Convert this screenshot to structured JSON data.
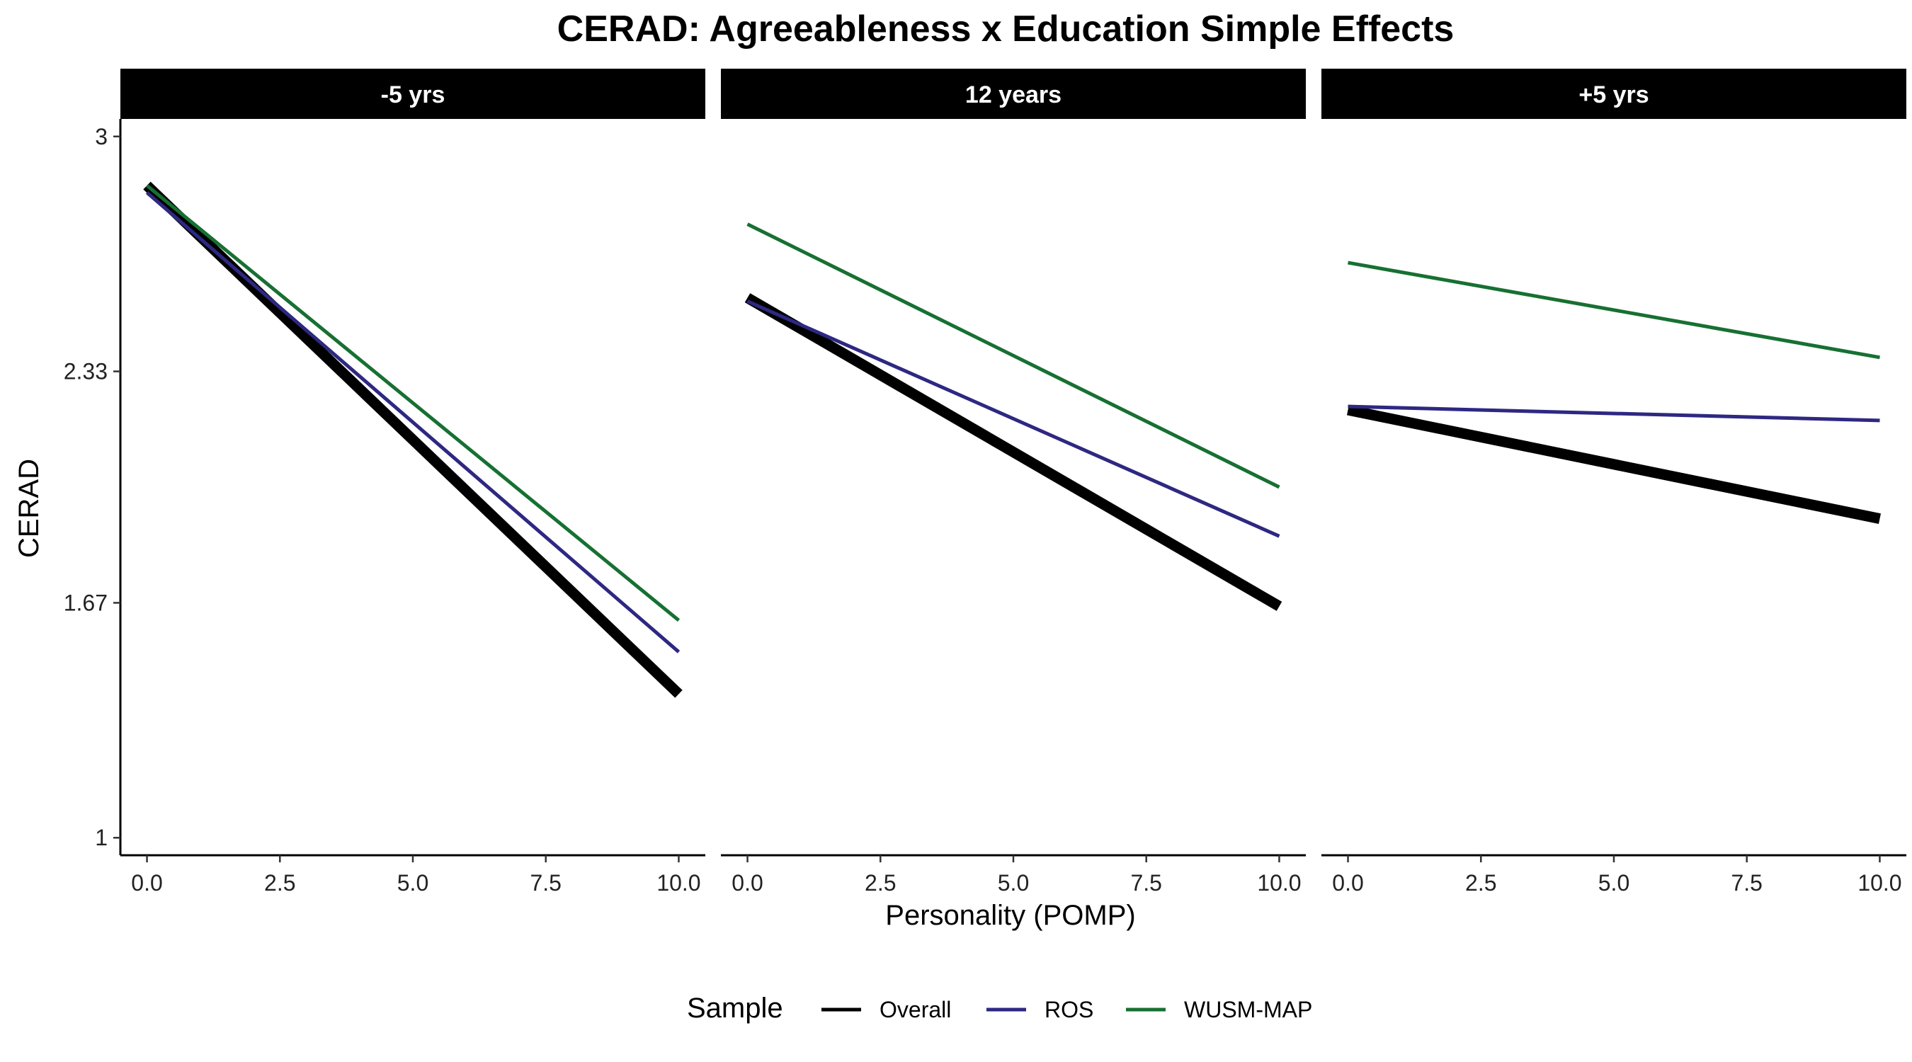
{
  "chart_data": {
    "type": "line",
    "title": "CERAD: Agreeableness x Education Simple Effects",
    "xlabel": "Personality (POMP)",
    "ylabel": "CERAD",
    "xlim": [
      -0.5,
      10.5
    ],
    "ylim": [
      0.95,
      3.05
    ],
    "x_ticks": [
      0,
      2.5,
      5,
      7.5,
      10
    ],
    "x_tick_labels": [
      "0.0",
      "2.5",
      "5.0",
      "7.5",
      "10.0"
    ],
    "y_ticks": [
      1,
      1.67,
      2.33,
      3
    ],
    "y_tick_labels": [
      "1",
      "1.67",
      "2.33",
      "3"
    ],
    "grid": false,
    "legend": {
      "title": "Sample",
      "position": "bottom",
      "entries": [
        "Overall",
        "ROS",
        "WUSM-MAP"
      ]
    },
    "series_style": [
      {
        "name": "Overall",
        "color": "#000000",
        "weight": "thick"
      },
      {
        "name": "ROS",
        "color": "#2e2882",
        "weight": "thin"
      },
      {
        "name": "WUSM-MAP",
        "color": "#177032",
        "weight": "thin"
      }
    ],
    "panels": [
      {
        "label": "-5 yrs",
        "series": [
          {
            "name": "Overall",
            "x": [
              0,
              10
            ],
            "y": [
              2.86,
              1.41
            ]
          },
          {
            "name": "ROS",
            "x": [
              0,
              10
            ],
            "y": [
              2.84,
              1.53
            ]
          },
          {
            "name": "WUSM-MAP",
            "x": [
              0,
              10
            ],
            "y": [
              2.86,
              1.62
            ]
          }
        ]
      },
      {
        "label": "12 years",
        "series": [
          {
            "name": "Overall",
            "x": [
              0,
              10
            ],
            "y": [
              2.54,
              1.66
            ]
          },
          {
            "name": "ROS",
            "x": [
              0,
              10
            ],
            "y": [
              2.53,
              1.86
            ]
          },
          {
            "name": "WUSM-MAP",
            "x": [
              0,
              10
            ],
            "y": [
              2.75,
              2.0
            ]
          }
        ]
      },
      {
        "label": "+5 yrs",
        "series": [
          {
            "name": "Overall",
            "x": [
              0,
              10
            ],
            "y": [
              2.22,
              1.91
            ]
          },
          {
            "name": "ROS",
            "x": [
              0,
              10
            ],
            "y": [
              2.23,
              2.19
            ]
          },
          {
            "name": "WUSM-MAP",
            "x": [
              0,
              10
            ],
            "y": [
              2.64,
              2.37
            ]
          }
        ]
      }
    ]
  }
}
